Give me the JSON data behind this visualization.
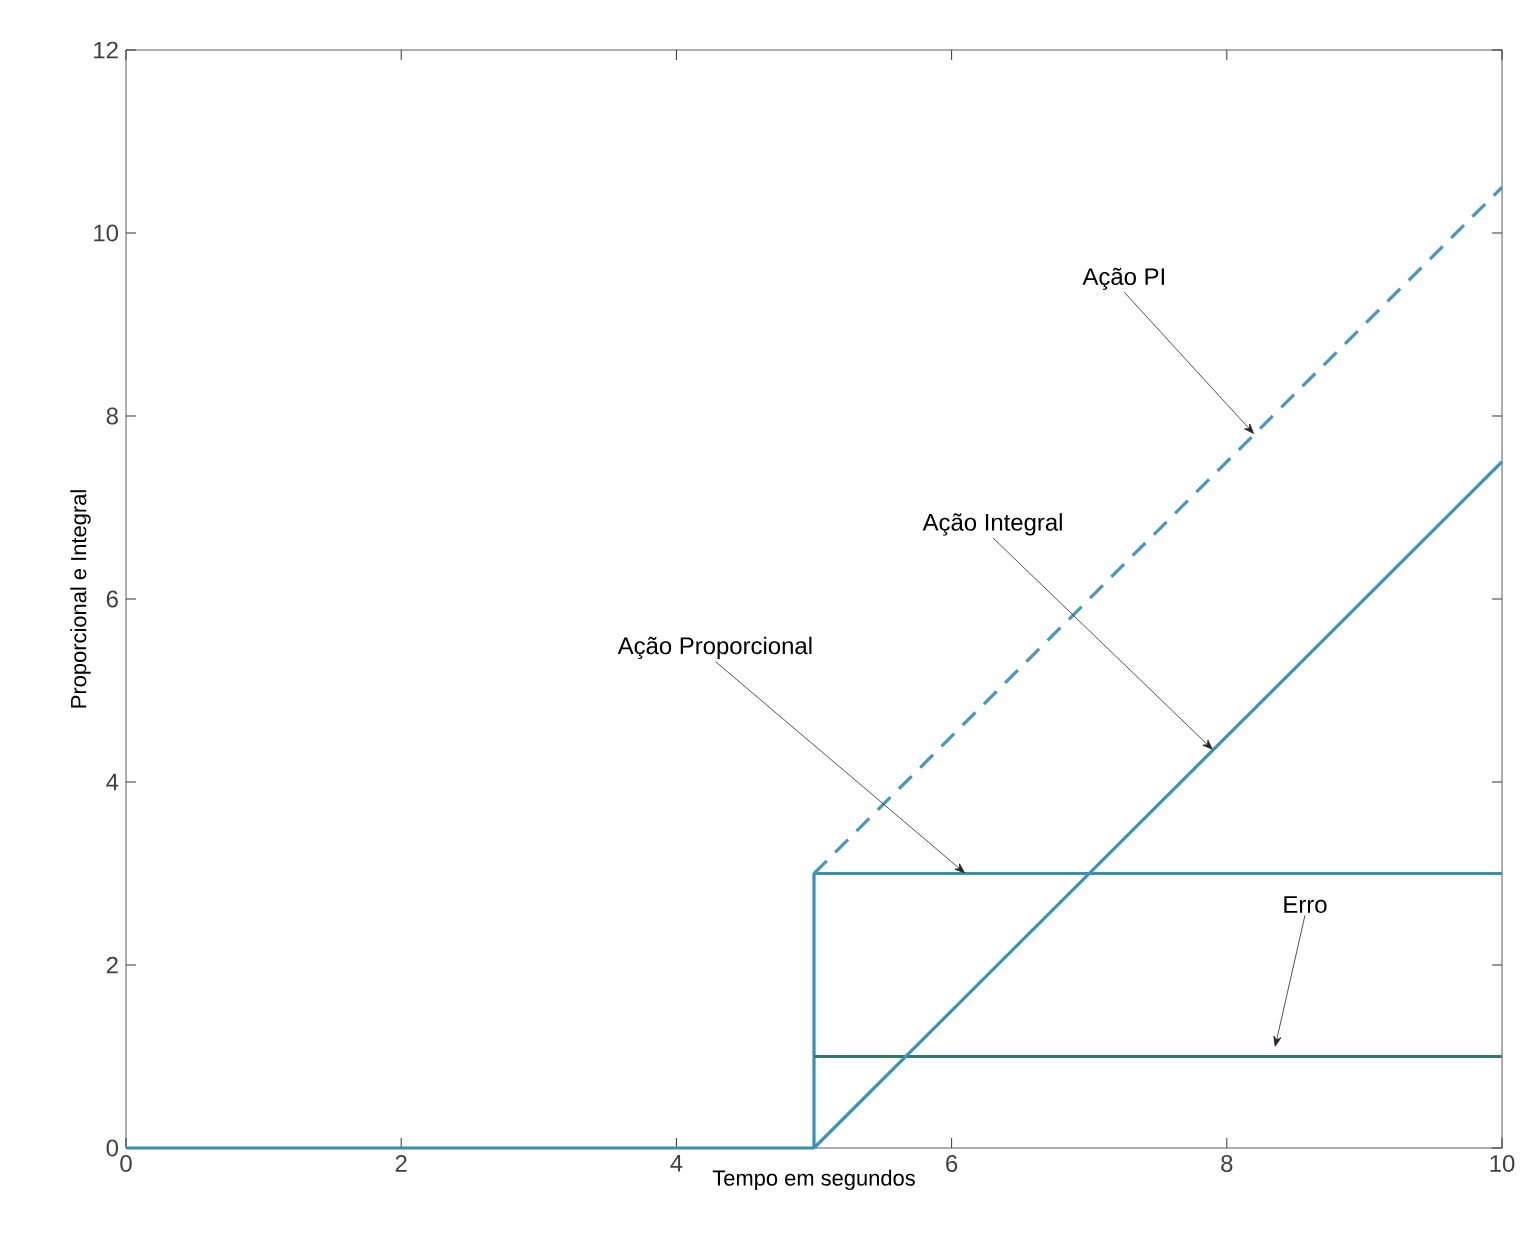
{
  "chart_data": {
    "type": "line",
    "xlabel": "Tempo em segundos",
    "ylabel": "Proporcional e Integral",
    "xlim": [
      0,
      10
    ],
    "ylim": [
      0,
      12
    ],
    "xticks": [
      0,
      2,
      4,
      6,
      8,
      10
    ],
    "yticks": [
      0,
      2,
      4,
      6,
      8,
      10,
      12
    ],
    "grid": false,
    "marker": "none",
    "series": [
      {
        "color": "#3a8fb7",
        "x": [
          5,
          5,
          10
        ],
        "values": [
          0,
          3,
          3
        ],
        "line_style": "solid"
      },
      {
        "color": "#2f7d5e",
        "x": [
          5,
          10
        ],
        "values": [
          1,
          1
        ],
        "line_style": "solid"
      },
      {
        "color": "#3b93bb",
        "x": [
          5,
          10
        ],
        "values": [
          0,
          7.5
        ],
        "line_style": "solid"
      },
      {
        "color": "#4a96bd",
        "x": [
          5,
          10
        ],
        "values": [
          3,
          10.5
        ],
        "line_style": "dashed"
      },
      {
        "color": "#3a8fb7",
        "x": [
          0,
          5
        ],
        "values": [
          0,
          0
        ],
        "line_style": "solid"
      }
    ],
    "annotations": [
      {
        "text": "Ação PI",
        "x": 8.2,
        "y": 7.8
      },
      {
        "text": "Ação Integral",
        "x": 7.9,
        "y": 4.35
      },
      {
        "text": "Ação Proporcional",
        "x": 6.1,
        "y": 3
      },
      {
        "text": "Erro",
        "x": 8.35,
        "y": 1.1
      }
    ]
  }
}
